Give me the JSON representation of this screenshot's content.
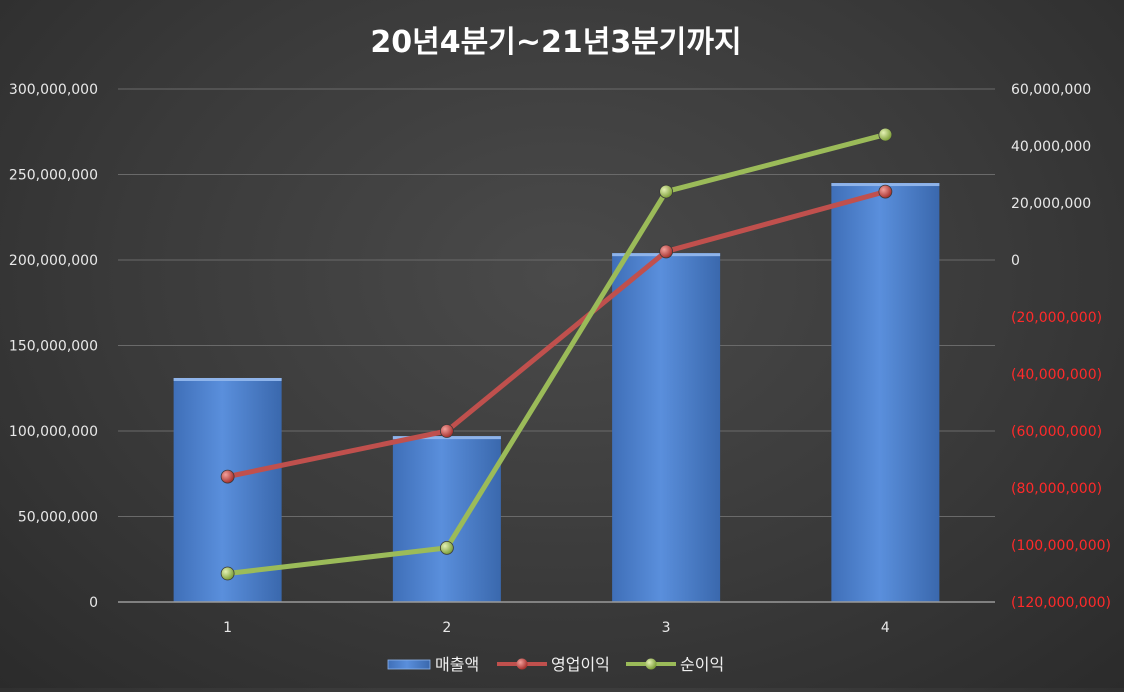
{
  "chart_data": {
    "type": "bar",
    "title": "20년4분기~21년3분기까지",
    "categories": [
      "1",
      "2",
      "3",
      "4"
    ],
    "series": [
      {
        "name": "매출액",
        "type": "bar",
        "axis": "left",
        "values": [
          131000000,
          97000000,
          204000000,
          245000000
        ],
        "color": "#4f81bd"
      },
      {
        "name": "영업이익",
        "type": "line",
        "axis": "right",
        "values": [
          -76000000,
          -60000000,
          3000000,
          24000000
        ],
        "color": "#c0504d"
      },
      {
        "name": "순이익",
        "type": "line",
        "axis": "right",
        "values": [
          -110000000,
          -101000000,
          24000000,
          44000000
        ],
        "color": "#9bbb59"
      }
    ],
    "y_left": {
      "min": 0,
      "max": 300000000,
      "step": 50000000,
      "tick_labels": [
        "0",
        "50,000,000",
        "100,000,000",
        "150,000,000",
        "200,000,000",
        "250,000,000",
        "300,000,000"
      ]
    },
    "y_right": {
      "min": -120000000,
      "max": 60000000,
      "step": 20000000,
      "tick_labels": [
        "(120,000,000)",
        "(100,000,000)",
        "(80,000,000)",
        "(60,000,000)",
        "(40,000,000)",
        "(20,000,000)",
        "0",
        "20,000,000",
        "40,000,000",
        "60,000,000"
      ],
      "negative_color": "#ff2a2a"
    },
    "grid": true,
    "legend_position": "bottom"
  }
}
